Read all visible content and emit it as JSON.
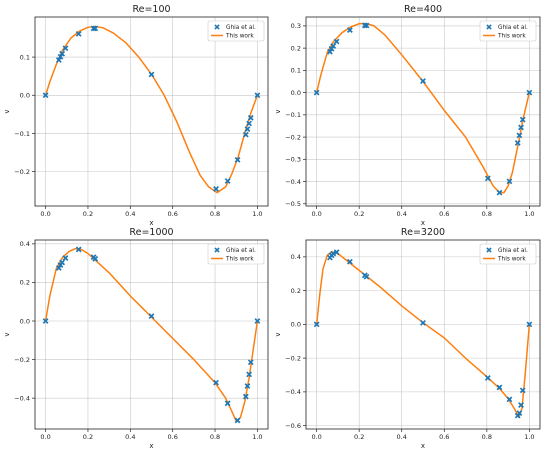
{
  "figure": {
    "layout": "2x2 grid of line+scatter plots"
  },
  "chart_data": [
    {
      "type": "line",
      "title": "Re=100",
      "xlabel": "x",
      "ylabel": "v",
      "xlim": [
        -0.05,
        1.05
      ],
      "ylim": [
        -0.29,
        0.205
      ],
      "xticks": [
        0.0,
        0.2,
        0.4,
        0.6,
        0.8,
        1.0
      ],
      "xtick_labels": [
        "0.0",
        "0.2",
        "0.4",
        "0.6",
        "0.8",
        "1.0"
      ],
      "yticks": [
        -0.2,
        -0.1,
        0.0,
        0.1
      ],
      "ytick_labels": [
        "−0.2",
        "−0.1",
        "0.0",
        "0.1"
      ],
      "grid": true,
      "legend_position": "top-right",
      "series": [
        {
          "name": "Ghia et al.",
          "kind": "scatter",
          "marker": "x",
          "color": "#1f77b4",
          "x": [
            0.0,
            0.0625,
            0.0703,
            0.0781,
            0.0938,
            0.1563,
            0.2266,
            0.2344,
            0.5,
            0.8047,
            0.8594,
            0.9063,
            0.9453,
            0.9531,
            0.9609,
            0.9688,
            1.0
          ],
          "y": [
            0.0,
            0.0923,
            0.1009,
            0.1089,
            0.1232,
            0.1608,
            0.1751,
            0.1753,
            0.0545,
            -0.2453,
            -0.2245,
            -0.1691,
            -0.1031,
            -0.0886,
            -0.0739,
            -0.0591,
            0.0
          ]
        },
        {
          "name": "This work",
          "kind": "line",
          "color": "#ff7f0e",
          "x": [
            0.0,
            0.02,
            0.05,
            0.08,
            0.12,
            0.16,
            0.2,
            0.235,
            0.27,
            0.32,
            0.38,
            0.44,
            0.5,
            0.56,
            0.62,
            0.68,
            0.73,
            0.77,
            0.81,
            0.85,
            0.88,
            0.91,
            0.94,
            0.97,
            1.0
          ],
          "y": [
            0.0,
            0.035,
            0.08,
            0.118,
            0.15,
            0.168,
            0.178,
            0.18,
            0.177,
            0.163,
            0.137,
            0.1,
            0.055,
            0.0,
            -0.07,
            -0.15,
            -0.21,
            -0.24,
            -0.255,
            -0.24,
            -0.205,
            -0.16,
            -0.1,
            -0.045,
            0.0
          ]
        }
      ]
    },
    {
      "type": "line",
      "title": "Re=400",
      "xlabel": "x",
      "ylabel": "v",
      "xlim": [
        -0.05,
        1.05
      ],
      "ylim": [
        -0.51,
        0.34
      ],
      "xticks": [
        0.0,
        0.2,
        0.4,
        0.6,
        0.8,
        1.0
      ],
      "xtick_labels": [
        "0.0",
        "0.2",
        "0.4",
        "0.6",
        "0.8",
        "1.0"
      ],
      "yticks": [
        -0.5,
        -0.4,
        -0.3,
        -0.2,
        -0.1,
        0.0,
        0.1,
        0.2,
        0.3
      ],
      "ytick_labels": [
        "−0.5",
        "−0.4",
        "−0.3",
        "−0.2",
        "−0.1",
        "0.0",
        "0.1",
        "0.2",
        "0.3"
      ],
      "grid": true,
      "legend_position": "top-right",
      "series": [
        {
          "name": "Ghia et al.",
          "kind": "scatter",
          "marker": "x",
          "color": "#1f77b4",
          "x": [
            0.0,
            0.0625,
            0.0703,
            0.0781,
            0.0938,
            0.1563,
            0.2266,
            0.2344,
            0.5,
            0.8047,
            0.8594,
            0.9063,
            0.9453,
            0.9531,
            0.9609,
            0.9688,
            1.0
          ],
          "y": [
            0.0,
            0.1836,
            0.1971,
            0.2092,
            0.2297,
            0.2812,
            0.302,
            0.3017,
            0.0519,
            -0.3859,
            -0.4499,
            -0.3991,
            -0.2264,
            -0.1925,
            -0.1566,
            -0.1215,
            0.0
          ]
        },
        {
          "name": "This work",
          "kind": "line",
          "color": "#ff7f0e",
          "x": [
            0.0,
            0.02,
            0.05,
            0.08,
            0.12,
            0.16,
            0.2,
            0.235,
            0.27,
            0.32,
            0.4,
            0.5,
            0.6,
            0.7,
            0.78,
            0.83,
            0.86,
            0.88,
            0.9,
            0.92,
            0.95,
            0.97,
            1.0
          ],
          "y": [
            0.0,
            0.08,
            0.18,
            0.23,
            0.27,
            0.295,
            0.31,
            0.31,
            0.3,
            0.26,
            0.17,
            0.05,
            -0.08,
            -0.2,
            -0.33,
            -0.42,
            -0.45,
            -0.45,
            -0.42,
            -0.36,
            -0.22,
            -0.12,
            0.0
          ]
        }
      ]
    },
    {
      "type": "line",
      "title": "Re=1000",
      "xlabel": "x",
      "ylabel": "v",
      "xlim": [
        -0.05,
        1.05
      ],
      "ylim": [
        -0.56,
        0.42
      ],
      "xticks": [
        0.0,
        0.2,
        0.4,
        0.6,
        0.8,
        1.0
      ],
      "xtick_labels": [
        "0.0",
        "0.2",
        "0.4",
        "0.6",
        "0.8",
        "1.0"
      ],
      "yticks": [
        -0.4,
        -0.2,
        0.0,
        0.2,
        0.4
      ],
      "ytick_labels": [
        "−0.4",
        "−0.2",
        "0.0",
        "0.2",
        "0.4"
      ],
      "grid": true,
      "legend_position": "top-right",
      "series": [
        {
          "name": "Ghia et al.",
          "kind": "scatter",
          "marker": "x",
          "color": "#1f77b4",
          "x": [
            0.0,
            0.0625,
            0.0703,
            0.0781,
            0.0938,
            0.1563,
            0.2266,
            0.2344,
            0.5,
            0.8047,
            0.8594,
            0.9063,
            0.9453,
            0.9531,
            0.9609,
            0.9688,
            1.0
          ],
          "y": [
            0.0,
            0.2749,
            0.2901,
            0.3035,
            0.3263,
            0.371,
            0.3308,
            0.3224,
            0.0253,
            -0.3197,
            -0.4267,
            -0.5155,
            -0.3919,
            -0.3371,
            -0.2767,
            -0.2139,
            0.0
          ]
        },
        {
          "name": "This work",
          "kind": "line",
          "color": "#ff7f0e",
          "x": [
            0.0,
            0.02,
            0.05,
            0.08,
            0.11,
            0.14,
            0.17,
            0.2,
            0.24,
            0.3,
            0.4,
            0.5,
            0.6,
            0.7,
            0.8,
            0.85,
            0.88,
            0.9,
            0.92,
            0.94,
            0.96,
            0.98,
            1.0
          ],
          "y": [
            0.0,
            0.13,
            0.27,
            0.33,
            0.36,
            0.375,
            0.37,
            0.35,
            0.31,
            0.25,
            0.13,
            0.02,
            -0.09,
            -0.2,
            -0.32,
            -0.4,
            -0.47,
            -0.52,
            -0.5,
            -0.42,
            -0.3,
            -0.15,
            0.0
          ]
        }
      ]
    },
    {
      "type": "line",
      "title": "Re=3200",
      "xlabel": "x",
      "ylabel": "v",
      "xlim": [
        -0.05,
        1.05
      ],
      "ylim": [
        -0.62,
        0.5
      ],
      "xticks": [
        0.0,
        0.2,
        0.4,
        0.6,
        0.8,
        1.0
      ],
      "xtick_labels": [
        "0.0",
        "0.2",
        "0.4",
        "0.6",
        "0.8",
        "1.0"
      ],
      "yticks": [
        -0.6,
        -0.4,
        -0.2,
        0.0,
        0.2,
        0.4
      ],
      "ytick_labels": [
        "−0.6",
        "−0.4",
        "−0.2",
        "0.0",
        "0.2",
        "0.4"
      ],
      "grid": true,
      "legend_position": "top-right",
      "series": [
        {
          "name": "Ghia et al.",
          "kind": "scatter",
          "marker": "x",
          "color": "#1f77b4",
          "x": [
            0.0,
            0.0625,
            0.0703,
            0.0781,
            0.0938,
            0.1563,
            0.2266,
            0.2344,
            0.5,
            0.8047,
            0.8594,
            0.9063,
            0.9453,
            0.9531,
            0.9609,
            0.9688,
            1.0
          ],
          "y": [
            0.0,
            0.3956,
            0.4092,
            0.4191,
            0.4278,
            0.3712,
            0.2907,
            0.2822,
            0.009,
            -0.3173,
            -0.3736,
            -0.4446,
            -0.5409,
            -0.5258,
            -0.478,
            -0.3909,
            0.0
          ]
        },
        {
          "name": "This work",
          "kind": "line",
          "color": "#ff7f0e",
          "x": [
            0.0,
            0.015,
            0.03,
            0.05,
            0.07,
            0.09,
            0.11,
            0.14,
            0.18,
            0.24,
            0.3,
            0.4,
            0.5,
            0.6,
            0.7,
            0.8,
            0.86,
            0.9,
            0.93,
            0.95,
            0.965,
            0.98,
            1.0
          ],
          "y": [
            0.0,
            0.18,
            0.33,
            0.41,
            0.43,
            0.425,
            0.41,
            0.38,
            0.34,
            0.28,
            0.22,
            0.11,
            0.01,
            -0.08,
            -0.2,
            -0.31,
            -0.38,
            -0.44,
            -0.5,
            -0.55,
            -0.5,
            -0.3,
            0.0
          ]
        }
      ]
    }
  ]
}
